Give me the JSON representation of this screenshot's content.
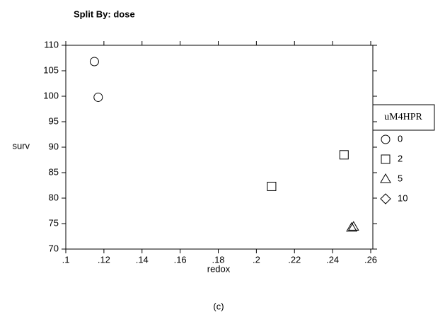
{
  "chart_data": {
    "type": "scatter",
    "title": "Split By: dose",
    "xlabel": "redox",
    "ylabel": "surv",
    "caption": "(c)",
    "legend_title": "uM4HPR",
    "legend": "right",
    "series": [
      {
        "name": "0",
        "marker": "circle",
        "color": "#000000",
        "x": [
          0.115,
          0.117
        ],
        "values": [
          106.8,
          99.8
        ]
      },
      {
        "name": "2",
        "marker": "square",
        "color": "#000000",
        "x": [
          0.208,
          0.246
        ],
        "values": [
          82.3,
          88.5
        ]
      },
      {
        "name": "5",
        "marker": "triangle",
        "color": "#000000",
        "x": [
          0.25,
          0.251
        ],
        "values": [
          74.2,
          74.4
        ]
      },
      {
        "name": "10",
        "marker": "diamond",
        "color": "#000000",
        "x": [],
        "values": []
      }
    ],
    "xlim": [
      0.1,
      0.26
    ],
    "xticks": [
      {
        "value": 0.1,
        "label": ".1"
      },
      {
        "value": 0.12,
        "label": ".12"
      },
      {
        "value": 0.14,
        "label": ".14"
      },
      {
        "value": 0.16,
        "label": ".16"
      },
      {
        "value": 0.18,
        "label": ".18"
      },
      {
        "value": 0.2,
        "label": ".2"
      },
      {
        "value": 0.22,
        "label": ".22"
      },
      {
        "value": 0.24,
        "label": ".24"
      },
      {
        "value": 0.26,
        "label": ".26"
      }
    ],
    "ylim": [
      70,
      110
    ],
    "yticks": [
      70,
      75,
      80,
      85,
      90,
      95,
      100,
      105,
      110
    ],
    "grid": false
  }
}
